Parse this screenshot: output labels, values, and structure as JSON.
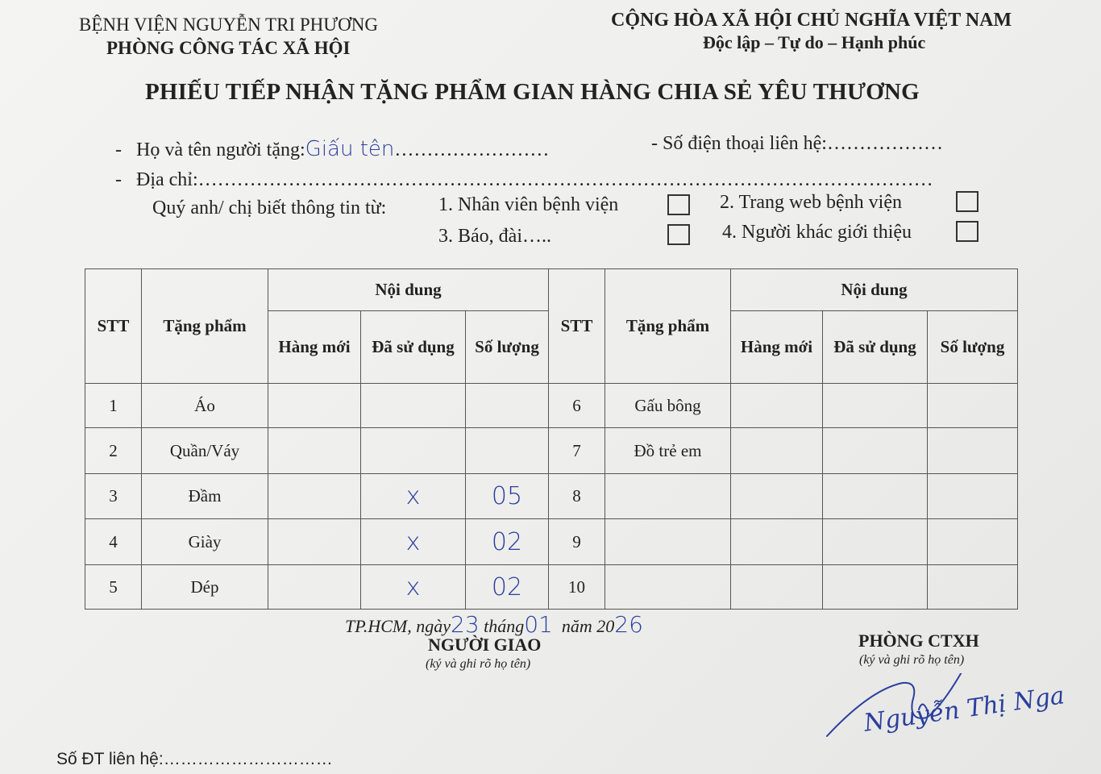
{
  "header": {
    "hospital": "BỆNH VIỆN NGUYỄN TRI PHƯƠNG",
    "department": "PHÒNG CÔNG TÁC XÃ HỘI",
    "nation": "CỘNG HÒA XÃ HỘI CHỦ NGHĨA VIỆT NAM",
    "motto": "Độc lập – Tự do – Hạnh phúc"
  },
  "title": "PHIẾU TIẾP NHẬN TẶNG PHẨM GIAN HÀNG CHIA SẺ YÊU THƯƠNG",
  "form": {
    "donor_label": "Họ và tên người tặng:",
    "donor_value": "Giấu tên",
    "donor_dots": "……………………",
    "phone_label": "- Số điện thoại liên hệ:",
    "phone_dots": "………………",
    "address_label": "Địa chỉ:",
    "address_dots": "……………………………………………………………………………………………………",
    "source_label": "Quý anh/ chị biết thông tin từ:",
    "sources": [
      {
        "label": "1. Nhân viên bệnh viện",
        "checked": false
      },
      {
        "label": "2. Trang web bệnh viện",
        "checked": false
      },
      {
        "label": "3. Báo, đài…..",
        "checked": false
      },
      {
        "label": "4. Người khác giới thiệu",
        "checked": false
      }
    ]
  },
  "table": {
    "headers": {
      "stt": "STT",
      "item": "Tặng phẩm",
      "content": "Nội dung",
      "new": "Hàng mới",
      "used": "Đã sử dụng",
      "qty": "Số lượng"
    },
    "left_rows": [
      {
        "stt": "1",
        "item": "Áo",
        "new": "",
        "used": "",
        "qty": ""
      },
      {
        "stt": "2",
        "item": "Quần/Váy",
        "new": "",
        "used": "",
        "qty": ""
      },
      {
        "stt": "3",
        "item": "Đầm",
        "new": "",
        "used": "x",
        "qty": "05"
      },
      {
        "stt": "4",
        "item": "Giày",
        "new": "",
        "used": "x",
        "qty": "02"
      },
      {
        "stt": "5",
        "item": "Dép",
        "new": "",
        "used": "x",
        "qty": "02"
      }
    ],
    "right_rows": [
      {
        "stt": "6",
        "item": "Gấu bông",
        "new": "",
        "used": "",
        "qty": ""
      },
      {
        "stt": "7",
        "item": "Đồ trẻ em",
        "new": "",
        "used": "",
        "qty": ""
      },
      {
        "stt": "8",
        "item": "",
        "new": "",
        "used": "",
        "qty": ""
      },
      {
        "stt": "9",
        "item": "",
        "new": "",
        "used": "",
        "qty": ""
      },
      {
        "stt": "10",
        "item": "",
        "new": "",
        "used": "",
        "qty": ""
      }
    ]
  },
  "footer": {
    "date_prefix": "TP.HCM, ngày",
    "day": "23",
    "month_label": "tháng",
    "month": "01",
    "year_label": "năm 20",
    "year_suffix": "26",
    "giver_title": "NGƯỜI GIAO",
    "giver_note": "(ký và ghi rõ họ tên)",
    "receiver_title": "PHÒNG CTXH",
    "receiver_note": "(ký và ghi rõ họ tên)",
    "receiver_signature_name": "Nguyễn Thị Nga",
    "phone_label": "Số ĐT liên hệ:",
    "phone_dots": "…………………………"
  },
  "colors": {
    "ink": "#2b3f9e",
    "print": "#222222",
    "paper": "#f1f1ef"
  }
}
